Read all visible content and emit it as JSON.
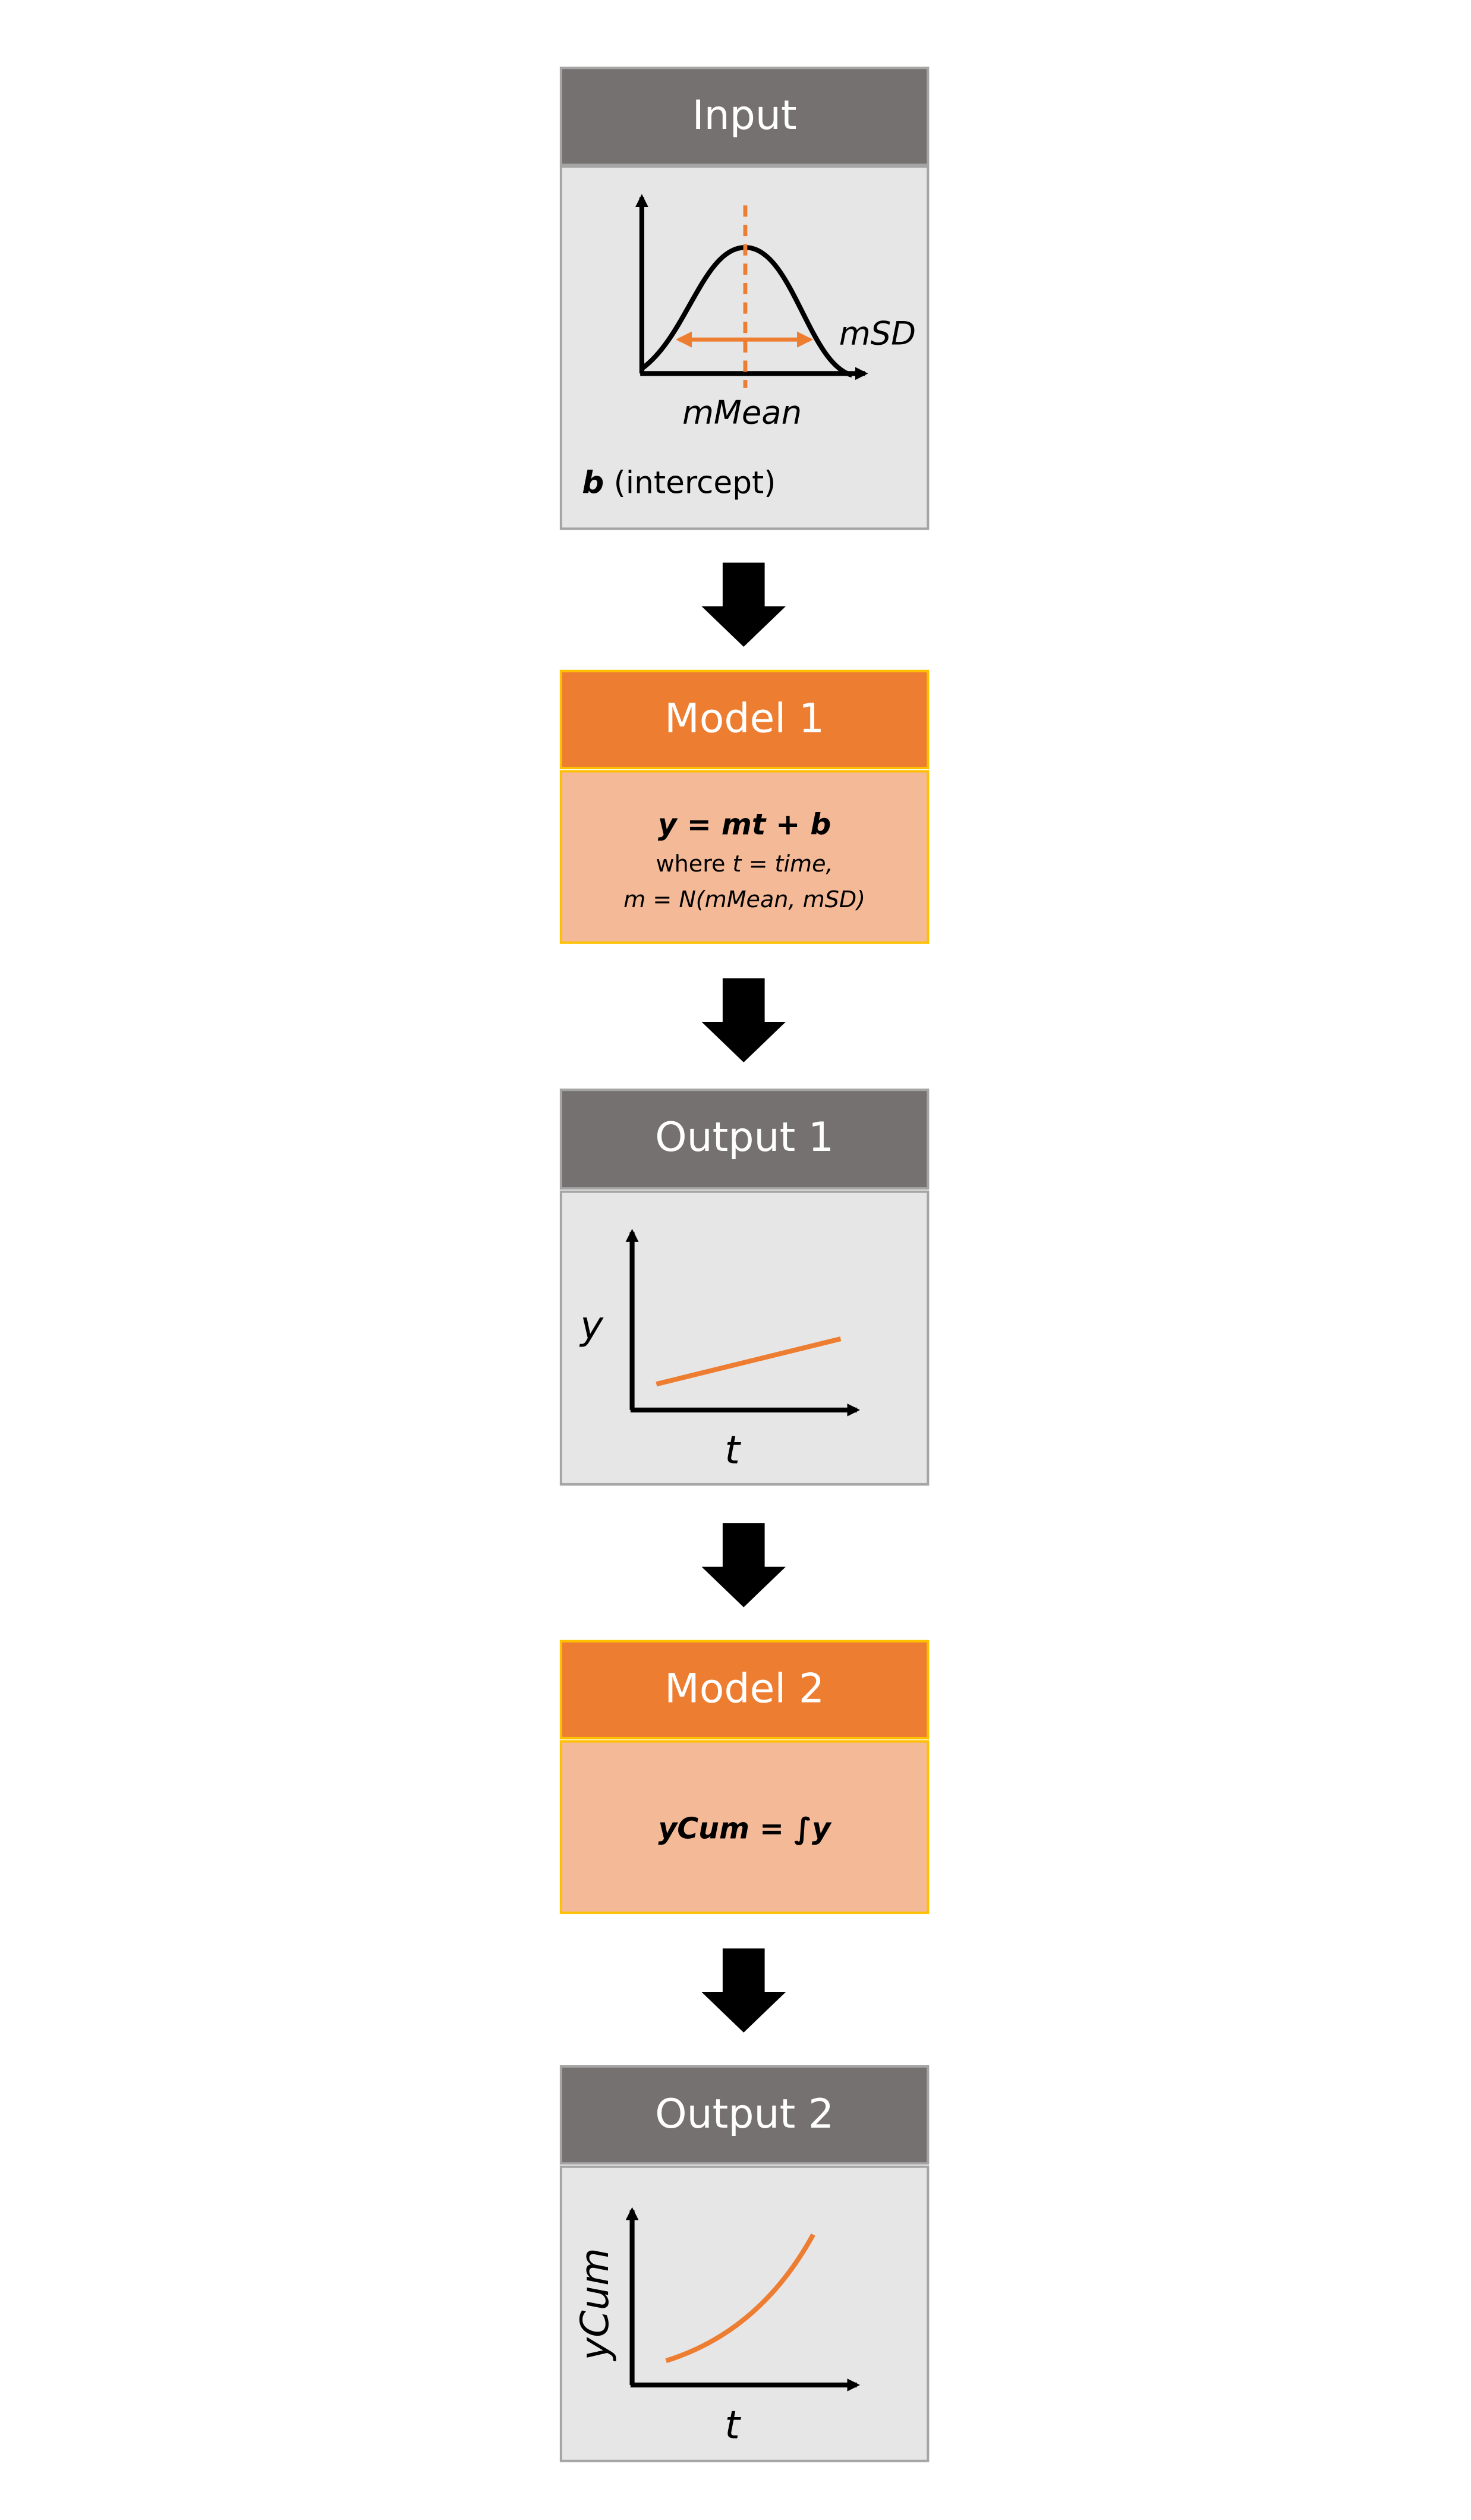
{
  "input": {
    "title": "Input",
    "sd_label": "mSD",
    "mean_label": "mMean",
    "intercept_symbol": "b",
    "intercept_text": "(intercept)"
  },
  "model_1": {
    "title": "Model 1",
    "equation": "y = mt + b",
    "where_word": "where",
    "where_def": "t = time,",
    "m_def": "m = N(mMean, mSD)"
  },
  "output_1": {
    "title": "Output 1",
    "y_label": "y",
    "x_label": "t"
  },
  "model_2": {
    "title": "Model 2",
    "equation": "yCum = ∫y"
  },
  "output_2": {
    "title": "Output 2",
    "y_label": "yCum",
    "x_label": "t"
  }
}
